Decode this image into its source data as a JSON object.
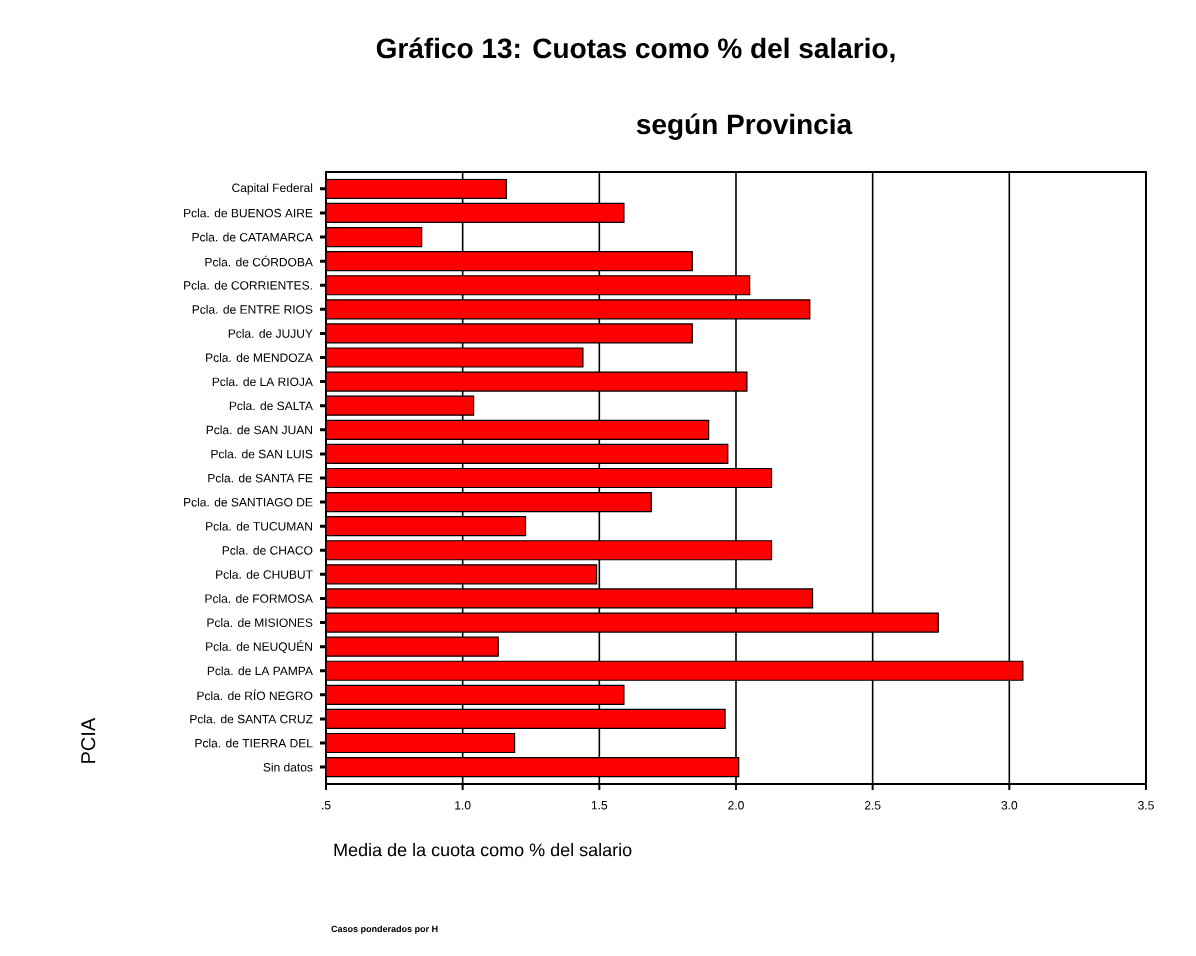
{
  "chart_data": {
    "type": "bar",
    "orientation": "horizontal",
    "title": "Gráfico 13: Cuotas como % del salario,",
    "subtitle": "según Provincia",
    "xlabel": "Media de la cuota como % del salario",
    "ylabel": "PCIA",
    "annotations": [
      "Casos ponderados por H"
    ],
    "categories": [
      "Capital Federal",
      "Pcla. de BUENOS AIRE",
      "Pcla. de CATAMARCA",
      "Pcla. de CÓRDOBA",
      "Pcla. de CORRIENTES.",
      "Pcla. de ENTRE RIOS",
      "Pcla. de JUJUY",
      "Pcla. de MENDOZA",
      "Pcla. de LA RIOJA",
      "Pcla. de SALTA",
      "Pcla. de SAN JUAN",
      "Pcla. de SAN LUIS",
      "Pcla. de SANTA FE",
      "Pcla. de SANTIAGO DE",
      "Pcla. de TUCUMAN",
      "Pcla. de CHACO",
      "Pcla. de CHUBUT",
      "Pcla. de FORMOSA",
      "Pcla. de MISIONES",
      "Pcla. de NEUQUÉN",
      "Pcla. de LA PAMPA",
      "Pcla. de RÍO NEGRO",
      "Pcla. de SANTA CRUZ",
      "Pcla. de TIERRA DEL",
      "Sin datos"
    ],
    "values": [
      1.16,
      1.59,
      0.85,
      1.84,
      2.05,
      2.27,
      1.84,
      1.44,
      2.04,
      1.04,
      1.9,
      1.97,
      2.13,
      1.69,
      1.23,
      2.13,
      1.49,
      2.28,
      2.74,
      1.13,
      3.05,
      1.59,
      1.96,
      1.19,
      2.01
    ],
    "color": "#ff0000",
    "xlim": [
      0.5,
      3.5
    ],
    "xticks": [
      {
        "value": 0.5,
        "label": ".5"
      },
      {
        "value": 1.0,
        "label": "1.0"
      },
      {
        "value": 1.5,
        "label": "1.5"
      },
      {
        "value": 2.0,
        "label": "2.0"
      },
      {
        "value": 2.5,
        "label": "2.5"
      },
      {
        "value": 3.0,
        "label": "3.0"
      },
      {
        "value": 3.5,
        "label": "3.5"
      }
    ],
    "grid": "x"
  }
}
